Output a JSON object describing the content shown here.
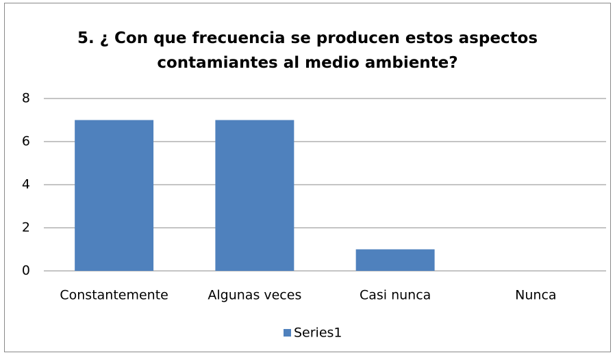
{
  "chart_data": {
    "type": "bar",
    "title": "5. ¿ Con que frecuencia se producen estos aspectos contamiantes al medio ambiente?",
    "categories": [
      "Constantemente",
      "Algunas veces",
      "Casi nunca",
      "Nunca"
    ],
    "series": [
      {
        "name": "Series1",
        "color": "#4f81bd",
        "values": [
          7,
          7,
          1,
          0
        ]
      }
    ],
    "ylim": [
      0,
      8
    ],
    "yticks": [
      0,
      2,
      4,
      6,
      8
    ],
    "grid": true,
    "legend": "bottom"
  }
}
